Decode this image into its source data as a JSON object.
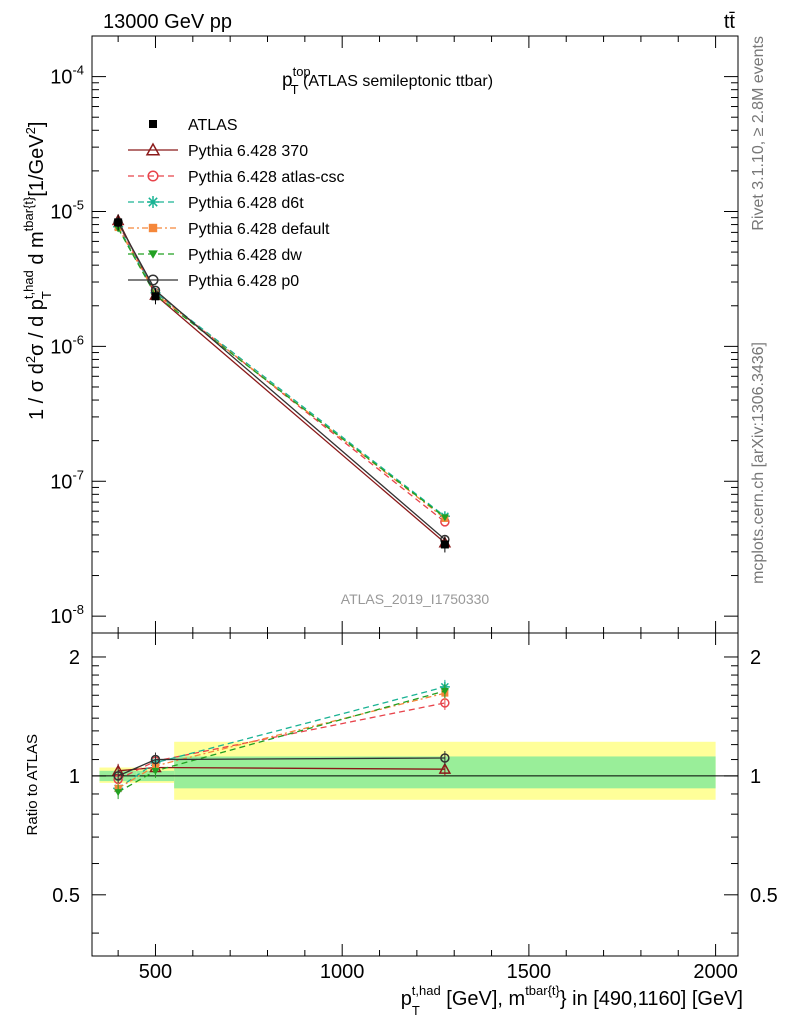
{
  "header": {
    "left": "13000 GeV pp",
    "right": "tt̄",
    "side_rivet": "Rivet 3.1.10, ≥ 2.8M events",
    "side_mcplots": "mcplots.cern.ch [arXiv:1306.3436]"
  },
  "chart_data": {
    "type": "line",
    "title_main": "p",
    "title_sup": "top",
    "title_sub": "T",
    "title_rest": " (ATLAS semileptonic ttbar)",
    "watermark": "ATLAS_2019_I1750330",
    "ylabel": "1 / σ d²σ / d p_T^{t,had} d m^{tbar{t}} [1/GeV²]",
    "xlabel": "p_T^{t,had} [GeV], m^{tbar{t}} in [490,1160] [GeV]",
    "ratio_ylabel": "Ratio to ATLAS",
    "xlim": [
      330,
      2060
    ],
    "ylim": [
      7.5e-09,
      0.0002
    ],
    "ylog": true,
    "ratio_ylim": [
      0.35,
      2.3
    ],
    "x_ticks": [
      500,
      1000,
      1500,
      2000
    ],
    "y_ticks": [
      {
        "v": 1e-08,
        "exp": "-8"
      },
      {
        "v": 1e-07,
        "exp": "-7"
      },
      {
        "v": 1e-06,
        "exp": "-6"
      },
      {
        "v": 1e-05,
        "exp": "-5"
      },
      {
        "v": 0.0001,
        "exp": "-4"
      }
    ],
    "ratio_ticks": [
      {
        "v": 0.5,
        "label": "0.5"
      },
      {
        "v": 1,
        "label": "1"
      },
      {
        "v": 2,
        "label": "2"
      }
    ],
    "x": [
      400,
      500,
      1275
    ],
    "data": {
      "name": "ATLAS",
      "values": [
        8.3e-06,
        2.35e-06,
        3.4e-08
      ],
      "bins": [
        [
          350,
          450
        ],
        [
          450,
          550
        ],
        [
          550,
          2000
        ]
      ],
      "band_stat": [
        [
          0.97,
          1.03
        ],
        [
          0.97,
          1.03
        ],
        [
          0.93,
          1.12
        ]
      ],
      "band_total": [
        [
          0.96,
          1.05
        ],
        [
          0.96,
          1.05
        ],
        [
          0.87,
          1.22
        ]
      ]
    },
    "series": [
      {
        "name": "Pythia 6.428 370",
        "color": "#8b1a1a",
        "marker": "triangle-open",
        "dash": "",
        "values": [
          8.6e-06,
          2.4e-06,
          3.5e-08
        ],
        "ratio": [
          1.03,
          1.05,
          1.04
        ]
      },
      {
        "name": "Pythia 6.428 atlas-csc",
        "color": "#e8434b",
        "marker": "circle-open",
        "dash": "6,4",
        "values": [
          8.1e-06,
          2.5e-06,
          5e-08
        ],
        "ratio": [
          0.98,
          1.09,
          1.53
        ]
      },
      {
        "name": "Pythia 6.428 d6t",
        "color": "#1ab394",
        "marker": "star",
        "dash": "6,4",
        "values": [
          7.7e-06,
          2.5e-06,
          5.5e-08
        ],
        "ratio": [
          0.93,
          1.08,
          1.68
        ]
      },
      {
        "name": "Pythia 6.428 default",
        "color": "#f5873a",
        "marker": "square",
        "dash": "6,3,2,3",
        "values": [
          7.6e-06,
          2.45e-06,
          5.3e-08
        ],
        "ratio": [
          0.93,
          1.06,
          1.62
        ]
      },
      {
        "name": "Pythia 6.428 dw",
        "color": "#22a022",
        "marker": "triangle-down",
        "dash": "6,4",
        "values": [
          7.5e-06,
          2.4e-06,
          5.4e-08
        ],
        "ratio": [
          0.91,
          1.03,
          1.64
        ]
      },
      {
        "name": "Pythia 6.428 p0",
        "color": "#333333",
        "marker": "circle-open",
        "dash": "",
        "values": [
          8.3e-06,
          2.6e-06,
          3.7e-08
        ],
        "ratio": [
          1.0,
          1.1,
          1.11
        ]
      }
    ]
  }
}
